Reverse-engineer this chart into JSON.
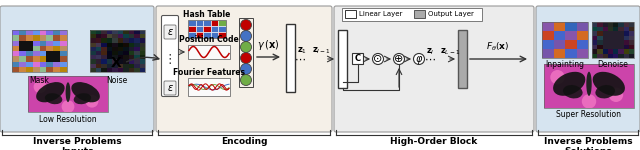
{
  "panel1_color": "#d6e4f0",
  "panel2_color": "#f5f0e8",
  "panel3_color": "#ececec",
  "panel4_color": "#d6e4f0",
  "section_labels": [
    "Inverse Problems\nInputs",
    "Encoding",
    "High-Order Block",
    "Inverse Problems\nSolutions"
  ],
  "ht_colors": [
    [
      "#4472c4",
      "#4472c4",
      "#4472c4",
      "#c00000",
      "#70ad47"
    ],
    [
      "#c00000",
      "#4472c4",
      "#c00000",
      "#4472c4",
      "#4472c4"
    ],
    [
      "#4472c4",
      "#c00000",
      "#4472c4",
      "#4472c4",
      "#c00000"
    ]
  ],
  "circle_colors": [
    "#c00000",
    "#4472c4",
    "#70ad47",
    "#c00000",
    "#4472c4",
    "#70ad47"
  ],
  "arrow_color": "#333333",
  "figure_width": 6.4,
  "figure_height": 1.5
}
